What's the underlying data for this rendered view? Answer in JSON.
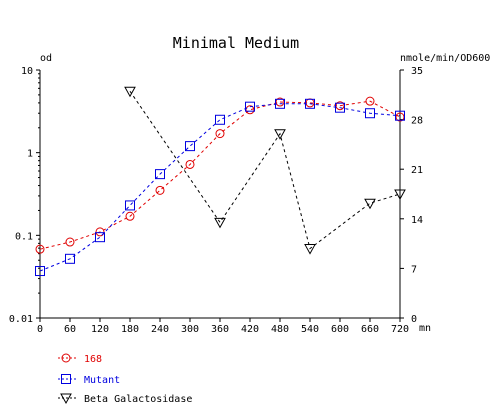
{
  "chart_data": {
    "type": "line",
    "title": "Minimal Medium",
    "left_axis": {
      "label": "od",
      "scale": "log",
      "ylim": [
        0.01,
        10
      ],
      "ticks": [
        {
          "value": 10,
          "label": "10"
        },
        {
          "value": 1,
          "label": "1"
        },
        {
          "value": 0.1,
          "label": "0.1"
        },
        {
          "value": 0.01,
          "label": "0.01"
        }
      ]
    },
    "right_axis": {
      "label": "nmole/min/OD600",
      "scale": "linear",
      "ylim": [
        0,
        35
      ],
      "ticks": [
        {
          "value": 35,
          "label": "35"
        },
        {
          "value": 28,
          "label": "28"
        },
        {
          "value": 21,
          "label": "21"
        },
        {
          "value": 14,
          "label": "14"
        },
        {
          "value": 7,
          "label": "7"
        },
        {
          "value": 0,
          "label": "0"
        }
      ]
    },
    "x_axis": {
      "unit": "mn",
      "xlim": [
        0,
        720
      ],
      "ticks": [
        {
          "value": 0,
          "label": "0"
        },
        {
          "value": 60,
          "label": "60"
        },
        {
          "value": 120,
          "label": "120"
        },
        {
          "value": 180,
          "label": "180"
        },
        {
          "value": 240,
          "label": "240"
        },
        {
          "value": 300,
          "label": "300"
        },
        {
          "value": 360,
          "label": "360"
        },
        {
          "value": 420,
          "label": "420"
        },
        {
          "value": 480,
          "label": "480"
        },
        {
          "value": 540,
          "label": "540"
        },
        {
          "value": 600,
          "label": "600"
        },
        {
          "value": 660,
          "label": "660"
        },
        {
          "value": 720,
          "label": "720"
        }
      ]
    },
    "grid": false,
    "legend_position": "bottom-left",
    "series": [
      {
        "name": "168",
        "axis": "left",
        "marker": "circle",
        "color": "#e00000",
        "x": [
          0,
          60,
          120,
          180,
          240,
          300,
          360,
          420,
          480,
          540,
          600,
          660,
          720
        ],
        "y": [
          0.068,
          0.083,
          0.11,
          0.17,
          0.35,
          0.72,
          1.7,
          3.3,
          4.1,
          4.0,
          3.7,
          4.2,
          2.7
        ]
      },
      {
        "name": "Mutant",
        "axis": "left",
        "marker": "square",
        "color": "#0000e0",
        "x": [
          0,
          60,
          120,
          180,
          240,
          300,
          360,
          420,
          480,
          540,
          600,
          660,
          720
        ],
        "y": [
          0.037,
          0.052,
          0.095,
          0.23,
          0.55,
          1.2,
          2.5,
          3.6,
          3.9,
          3.9,
          3.5,
          3.0,
          2.8
        ]
      },
      {
        "name": "Beta Galactosidase",
        "axis": "right",
        "marker": "triangle-down",
        "color": "#000000",
        "x": [
          180,
          360,
          480,
          540,
          660,
          720
        ],
        "y": [
          32,
          13.5,
          26,
          9.8,
          16.2,
          17.5
        ]
      }
    ]
  }
}
